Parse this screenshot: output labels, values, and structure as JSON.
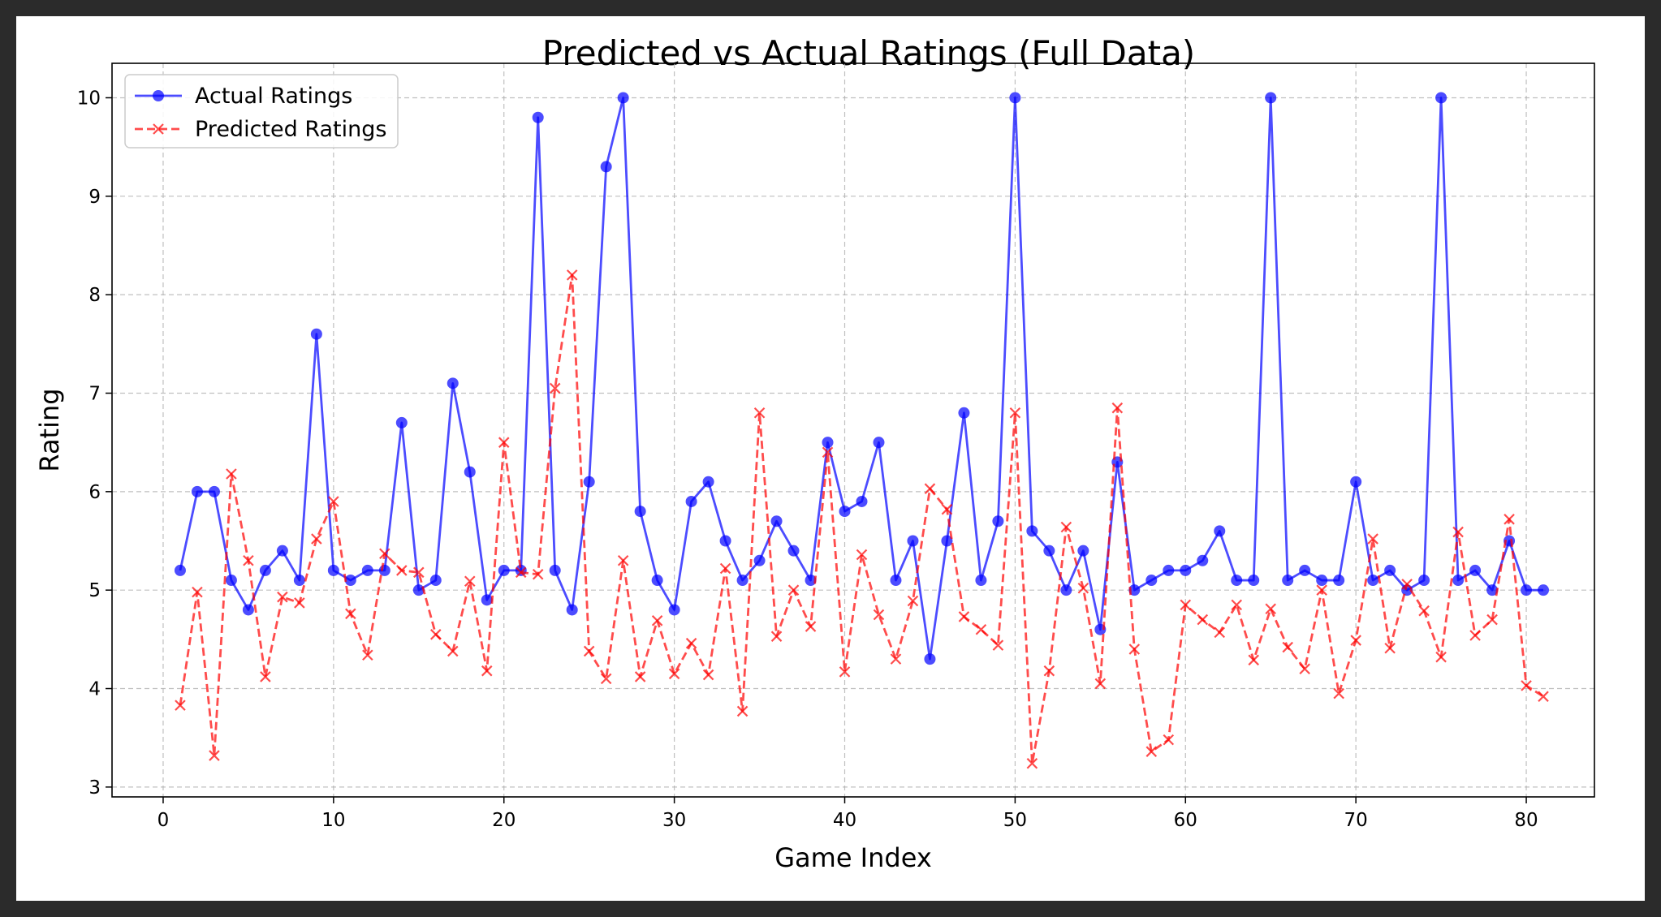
{
  "chart_data": {
    "type": "line",
    "title": "Predicted vs Actual Ratings (Full Data)",
    "xlabel": "Game Index",
    "ylabel": "Rating",
    "xlim": [
      -3,
      84
    ],
    "ylim": [
      2.9,
      10.35
    ],
    "xticks": [
      0,
      10,
      20,
      30,
      40,
      50,
      60,
      70,
      80
    ],
    "yticks": [
      3,
      4,
      5,
      6,
      7,
      8,
      9,
      10
    ],
    "grid": true,
    "legend_position": "top-left",
    "x": [
      1,
      2,
      3,
      4,
      5,
      6,
      7,
      8,
      9,
      10,
      11,
      12,
      13,
      14,
      15,
      16,
      17,
      18,
      19,
      20,
      21,
      22,
      23,
      24,
      25,
      26,
      27,
      28,
      29,
      30,
      31,
      32,
      33,
      34,
      35,
      36,
      37,
      38,
      39,
      40,
      41,
      42,
      43,
      44,
      45,
      46,
      47,
      48,
      49,
      50,
      51,
      52,
      53,
      54,
      55,
      56,
      57,
      58,
      59,
      60,
      61,
      62,
      63,
      64,
      65,
      66,
      67,
      68,
      69,
      70,
      71,
      72,
      73,
      74,
      75,
      76,
      77,
      78,
      79,
      80,
      81
    ],
    "series": [
      {
        "name": "Actual Ratings",
        "color": "#0000ff",
        "line_style": "solid",
        "marker": "circle",
        "values": [
          5.2,
          6.0,
          6.0,
          5.1,
          4.8,
          5.2,
          5.4,
          5.1,
          7.6,
          5.2,
          5.1,
          5.2,
          5.2,
          6.7,
          5.0,
          5.1,
          7.1,
          6.2,
          4.9,
          5.2,
          5.2,
          9.8,
          5.2,
          4.8,
          6.1,
          9.3,
          10.0,
          5.8,
          5.1,
          4.8,
          5.9,
          6.1,
          5.5,
          5.1,
          5.3,
          5.7,
          5.4,
          5.1,
          6.5,
          5.8,
          5.9,
          6.5,
          5.1,
          5.5,
          4.3,
          5.5,
          6.8,
          5.1,
          5.7,
          10.0,
          5.6,
          5.4,
          5.0,
          5.4,
          4.6,
          6.3,
          5.0,
          5.1,
          5.2,
          5.2,
          5.3,
          5.6,
          5.1,
          5.1,
          10.0,
          5.1,
          5.2,
          5.1,
          5.1,
          6.1,
          5.1,
          5.2,
          5.0,
          5.1,
          10.0,
          5.1,
          5.2,
          5.0,
          5.5,
          5.0,
          5.0
        ]
      },
      {
        "name": "Predicted Ratings",
        "color": "#ff0000",
        "line_style": "dashed",
        "marker": "x",
        "values": [
          3.83,
          4.98,
          3.32,
          6.18,
          5.3,
          4.12,
          4.93,
          4.87,
          5.52,
          5.9,
          4.76,
          4.34,
          5.37,
          5.2,
          5.18,
          4.55,
          4.38,
          5.09,
          4.18,
          6.5,
          5.18,
          5.16,
          7.05,
          8.2,
          4.38,
          4.1,
          5.3,
          4.12,
          4.69,
          4.15,
          4.46,
          4.14,
          5.22,
          3.77,
          6.8,
          4.53,
          5.0,
          4.63,
          6.4,
          4.17,
          5.36,
          4.75,
          4.3,
          4.89,
          6.03,
          5.82,
          4.73,
          4.6,
          4.44,
          6.8,
          3.24,
          4.18,
          5.64,
          5.02,
          4.05,
          6.85,
          4.4,
          3.36,
          3.48,
          4.85,
          4.7,
          4.57,
          4.85,
          4.29,
          4.81,
          4.42,
          4.2,
          5.0,
          3.95,
          4.49,
          5.52,
          4.41,
          5.06,
          4.79,
          4.32,
          5.59,
          4.54,
          4.7,
          5.72,
          4.03,
          3.92
        ]
      }
    ]
  }
}
